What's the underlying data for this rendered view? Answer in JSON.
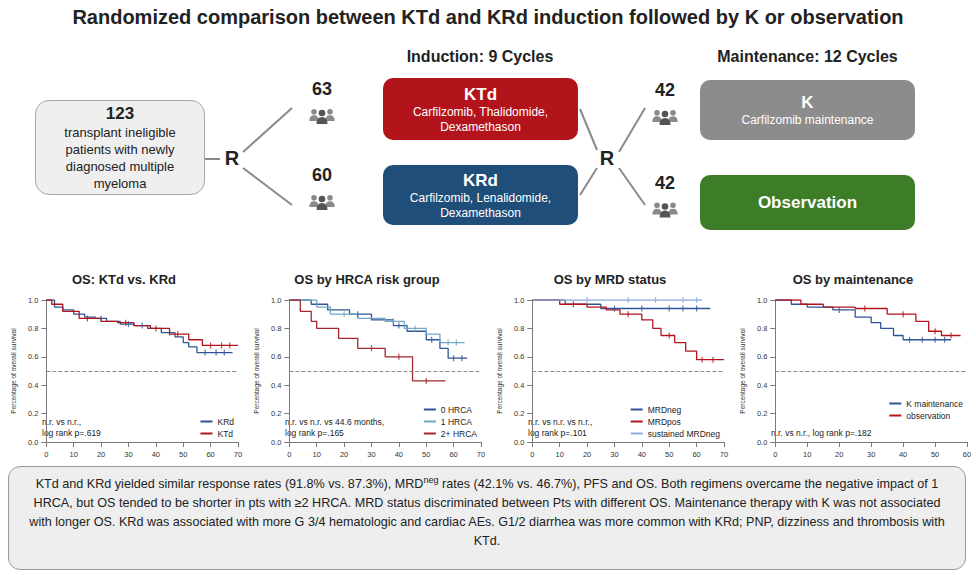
{
  "header": {
    "title": "Randomized comparison between KTd and KRd induction followed by K or observation"
  },
  "diagram": {
    "population": {
      "number": "123",
      "text": "transplant ineligible patients with newly diagnosed multiple myeloma"
    },
    "randomization": [
      "R",
      "R"
    ],
    "induction": {
      "title": "Induction: 9 Cycles",
      "arms": [
        {
          "count": 63,
          "label": "KTd",
          "drugs": "Carfilzomib, Thalidomide, Dexamethason",
          "color": "#b3141c"
        },
        {
          "count": 60,
          "label": "KRd",
          "drugs": "Carfilzomib, Lenalidomide, Dexamethason",
          "color": "#1f4e79"
        }
      ]
    },
    "maintenance": {
      "title": "Maintenance: 12 Cycles",
      "arms": [
        {
          "count": 42,
          "label": "K",
          "drugs": "Carfilzomib maintenance",
          "color": "#8c8c8c"
        },
        {
          "count": 42,
          "label": "Observation",
          "drugs": null,
          "color": "#3d7d28"
        }
      ]
    }
  },
  "chart_data": [
    {
      "type": "line",
      "title": "OS: KTd vs. KRd",
      "ylabel": "Percentage of overall survival",
      "line_style": "step",
      "marker": "tick",
      "grid": false,
      "legend": "bottom-right",
      "xlim": [
        0,
        70
      ],
      "xticks": [
        0,
        10,
        20,
        30,
        40,
        50,
        60,
        70
      ],
      "ylim": [
        0,
        1
      ],
      "yticks": [
        {
          "value": 0,
          "label": "0.0"
        },
        {
          "value": 0.2,
          "label": "0.2"
        },
        {
          "value": 0.4,
          "label": "0.4"
        },
        {
          "value": 0.6,
          "label": "0.6"
        },
        {
          "value": 0.8,
          "label": "0.8"
        },
        {
          "value": 1,
          "label": "1.0"
        }
      ],
      "reference_line": 0.5,
      "annotation": [
        "n.r. vs n.r.,",
        "log rank p=.619"
      ],
      "series": [
        {
          "name": "KRd",
          "color": "#2f5597",
          "x": [
            0,
            3,
            6,
            10,
            14,
            18,
            22,
            27,
            32,
            37,
            42,
            47,
            50,
            52,
            55,
            68
          ],
          "values": [
            1,
            0.95,
            0.93,
            0.9,
            0.88,
            0.87,
            0.85,
            0.83,
            0.82,
            0.8,
            0.77,
            0.74,
            0.7,
            0.67,
            0.63,
            0.63
          ],
          "censored_x": [
            20,
            30,
            35,
            45,
            58,
            62,
            65
          ],
          "censored_values": [
            0.87,
            0.83,
            0.82,
            0.77,
            0.63,
            0.63,
            0.63
          ]
        },
        {
          "name": "KTd",
          "color": "#b3141c",
          "x": [
            0,
            2,
            6,
            12,
            20,
            26,
            32,
            38,
            45,
            52,
            57,
            70
          ],
          "values": [
            1,
            0.97,
            0.92,
            0.87,
            0.85,
            0.84,
            0.82,
            0.8,
            0.76,
            0.72,
            0.68,
            0.68
          ],
          "censored_x": [
            15,
            29,
            40,
            48,
            60,
            64,
            67
          ],
          "censored_values": [
            0.87,
            0.84,
            0.8,
            0.76,
            0.68,
            0.68,
            0.68
          ]
        }
      ]
    },
    {
      "type": "line",
      "title": "OS by HRCA risk group",
      "ylabel": "Percentage of overall survival",
      "line_style": "step",
      "marker": "tick",
      "grid": false,
      "legend": "bottom-right",
      "xlim": [
        0,
        70
      ],
      "xticks": [
        0,
        10,
        20,
        30,
        40,
        50,
        60,
        70
      ],
      "ylim": [
        0,
        1
      ],
      "yticks": [
        {
          "value": 0,
          "label": "0.0"
        },
        {
          "value": 0.2,
          "label": "0.2"
        },
        {
          "value": 0.4,
          "label": "0.4"
        },
        {
          "value": 0.6,
          "label": "0.6"
        },
        {
          "value": 0.8,
          "label": "0.8"
        },
        {
          "value": 1,
          "label": "1.0"
        }
      ],
      "reference_line": 0.5,
      "annotation": [
        "n.r. vs n.r. vs 44.6 months,",
        "log rank p=.165"
      ],
      "series": [
        {
          "name": "0 HRCA",
          "color": "#2f5597",
          "x": [
            0,
            8,
            14,
            22,
            30,
            38,
            43,
            50,
            55,
            58,
            65
          ],
          "values": [
            1,
            0.97,
            0.93,
            0.9,
            0.86,
            0.82,
            0.78,
            0.72,
            0.66,
            0.59,
            0.59
          ],
          "censored_x": [
            25,
            40,
            52,
            60,
            63
          ],
          "censored_values": [
            0.9,
            0.82,
            0.72,
            0.59,
            0.59
          ]
        },
        {
          "name": "1 HRCA",
          "color": "#6fa8c8",
          "x": [
            0,
            10,
            15,
            25,
            35,
            42,
            50,
            55,
            64
          ],
          "values": [
            1,
            0.95,
            0.9,
            0.87,
            0.85,
            0.8,
            0.76,
            0.7,
            0.7
          ],
          "censored_x": [
            20,
            38,
            46,
            58,
            61
          ],
          "censored_values": [
            0.9,
            0.85,
            0.8,
            0.7,
            0.7
          ]
        },
        {
          "name": "2+ HRCA",
          "color": "#a4282a",
          "x": [
            0,
            4,
            8,
            10,
            18,
            25,
            35,
            45,
            57
          ],
          "values": [
            1,
            0.92,
            0.85,
            0.8,
            0.73,
            0.66,
            0.6,
            0.43,
            0.43
          ],
          "censored_x": [
            30,
            40,
            50
          ],
          "censored_values": [
            0.66,
            0.6,
            0.43
          ]
        }
      ]
    },
    {
      "type": "line",
      "title": "OS by MRD status",
      "ylabel": "Percentage of overall survival",
      "line_style": "step",
      "marker": "tick",
      "grid": false,
      "legend": "bottom-right",
      "xlim": [
        0,
        70
      ],
      "xticks": [
        0,
        10,
        20,
        30,
        40,
        50,
        60,
        70
      ],
      "ylim": [
        0,
        1
      ],
      "yticks": [
        {
          "value": 0,
          "label": "0.0"
        },
        {
          "value": 0.2,
          "label": "0.2"
        },
        {
          "value": 0.4,
          "label": "0.4"
        },
        {
          "value": 0.6,
          "label": "0.6"
        },
        {
          "value": 0.8,
          "label": "0.8"
        },
        {
          "value": 1,
          "label": "1.0"
        }
      ],
      "reference_line": 0.5,
      "annotation": [
        "n.r. vs n.r. vs n.r.,",
        "log rank p=.101"
      ],
      "series": [
        {
          "name": "MRDneg",
          "color": "#2f5597",
          "x": [
            0,
            12,
            25,
            65
          ],
          "values": [
            1,
            0.97,
            0.94,
            0.94
          ],
          "censored_x": [
            30,
            40,
            50,
            55,
            60
          ],
          "censored_values": [
            0.94,
            0.94,
            0.94,
            0.94,
            0.94
          ]
        },
        {
          "name": "MRDpos",
          "color": "#b3141c",
          "x": [
            0,
            10,
            20,
            27,
            32,
            40,
            44,
            47,
            52,
            56,
            60,
            70
          ],
          "values": [
            1,
            0.97,
            0.95,
            0.93,
            0.9,
            0.86,
            0.8,
            0.75,
            0.7,
            0.64,
            0.58,
            0.58
          ],
          "censored_x": [
            15,
            35,
            50,
            62,
            66
          ],
          "censored_values": [
            0.97,
            0.9,
            0.75,
            0.58,
            0.58
          ]
        },
        {
          "name": "sustained MRDneg",
          "color": "#8faadc",
          "x": [
            0,
            62
          ],
          "values": [
            1,
            1
          ],
          "censored_x": [
            20,
            35,
            45,
            55,
            60
          ],
          "censored_values": [
            1,
            1,
            1,
            1,
            1
          ]
        }
      ]
    },
    {
      "type": "line",
      "title": "OS by maintenance",
      "ylabel": "Percentage of overall survival",
      "line_style": "step",
      "marker": "tick",
      "grid": false,
      "legend": "bottom-right",
      "xlim": [
        0,
        60
      ],
      "xticks": [
        0,
        10,
        20,
        30,
        40,
        50,
        60
      ],
      "ylim": [
        0,
        1
      ],
      "yticks": [
        {
          "value": 0,
          "label": "0.0"
        },
        {
          "value": 0.2,
          "label": "0.2"
        },
        {
          "value": 0.4,
          "label": "0.4"
        },
        {
          "value": 0.6,
          "label": "0.6"
        },
        {
          "value": 0.8,
          "label": "0.8"
        },
        {
          "value": 1,
          "label": "1.0"
        }
      ],
      "reference_line": 0.5,
      "annotation": [
        "n.r. vs n.r., log rank p=.182"
      ],
      "series": [
        {
          "name": "K maintenance",
          "color": "#2f5597",
          "x": [
            0,
            5,
            10,
            18,
            25,
            30,
            33,
            37,
            40,
            55
          ],
          "values": [
            1,
            0.97,
            0.95,
            0.93,
            0.88,
            0.84,
            0.8,
            0.75,
            0.72,
            0.72
          ],
          "censored_x": [
            20,
            42,
            46,
            50,
            53
          ],
          "censored_values": [
            0.93,
            0.72,
            0.72,
            0.72,
            0.72
          ]
        },
        {
          "name": "observation",
          "color": "#b3141c",
          "x": [
            0,
            8,
            15,
            25,
            35,
            44,
            48,
            52,
            58
          ],
          "values": [
            1,
            0.97,
            0.95,
            0.94,
            0.9,
            0.85,
            0.78,
            0.75,
            0.75
          ],
          "censored_x": [
            28,
            40,
            50,
            55
          ],
          "censored_values": [
            0.94,
            0.9,
            0.78,
            0.75
          ]
        }
      ]
    }
  ],
  "footer": [
    "KTd and KRd yielded similar response rates (91.8% vs. 87.3%), MRD",
    {
      "sup": "neg"
    },
    " rates (42.1% vs. 46.7%), PFS and OS. Both regimens overcame the negative impact of 1 HRCA, but OS tended to be shorter in pts with ≥2 HRCA. MRD status discriminated between Pts with different OS. Maintenance therapy with K was not associated with longer OS. KRd was associated with more G 3/4 hematologic and cardiac AEs. G1/2 diarrhea was more common with KRd; PNP, dizziness and thrombosis with KTd."
  ]
}
